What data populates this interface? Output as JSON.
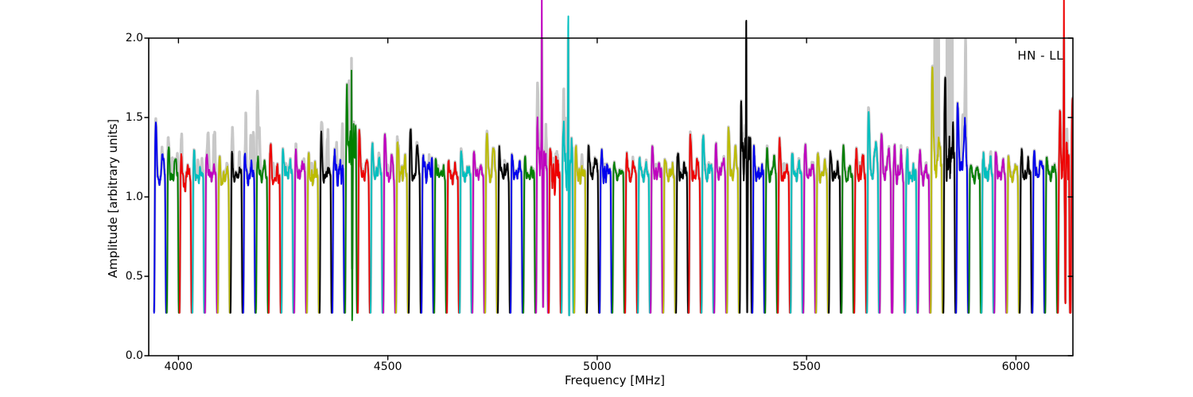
{
  "figure": {
    "xlabel": "Frequency [MHz]",
    "ylabel": "Amplitude [arbitrary units]",
    "annotation": "HN - LL",
    "background": "#ffffff",
    "frame_color": "#000000"
  },
  "chart_data": {
    "type": "line",
    "title": "",
    "xlabel": "Frequency [MHz]",
    "ylabel": "Amplitude [arbitrary units]",
    "annotation": "HN - LL",
    "xlim": [
      3929,
      6136
    ],
    "ylim": [
      0,
      2
    ],
    "xticks": [
      4000,
      4500,
      5000,
      5500,
      6000
    ],
    "yticks": [
      0,
      0.5,
      1,
      1.5,
      2
    ],
    "ytick_labels": [
      "0.0",
      "0.5",
      "1.0",
      "1.5",
      "2.0"
    ],
    "grid": false,
    "legend": "none",
    "palette": {
      "b": "#0000ee",
      "g": "#007f00",
      "r": "#ee0000",
      "c": "#00bfbf",
      "m": "#bf00bf",
      "y": "#bcbc00",
      "k": "#000000"
    },
    "gray_underlay_color": "#c8c8c8",
    "baseline_level": 0.27,
    "segment_grid": {
      "f_first_center_mhz": 3956.2,
      "spacing_mhz": 30.4,
      "width_mhz": 30.4
    },
    "rfi_spike_freqs_mhz": [
      4408,
      4868,
      4929,
      5362,
      5810,
      5841,
      6114
    ],
    "segment_fields": [
      "color",
      "plateau",
      "peak",
      "gray_extra",
      "spike_to",
      "dip_to",
      "noise",
      "gray_columns"
    ],
    "segments": [
      [
        "b",
        1.1,
        1.48,
        0.06,
        0,
        0,
        0.05,
        0
      ],
      [
        "g",
        1.12,
        1.31,
        0.14,
        0,
        0,
        0.05,
        0
      ],
      [
        "r",
        1.08,
        1.27,
        0.08,
        0,
        0,
        0.06,
        0
      ],
      [
        "c",
        1.12,
        1.26,
        0.1,
        0,
        0,
        0.05,
        0
      ],
      [
        "m",
        1.13,
        1.29,
        0.25,
        0,
        0,
        0.05,
        0
      ],
      [
        "y",
        1.1,
        1.21,
        0.06,
        0,
        0,
        0.06,
        0
      ],
      [
        "k",
        1.12,
        1.25,
        0.12,
        0,
        0,
        0.06,
        0
      ],
      [
        "b",
        1.12,
        1.26,
        0.3,
        0,
        0,
        0.06,
        0
      ],
      [
        "g",
        1.13,
        1.26,
        0.26,
        0,
        0,
        0.05,
        0
      ],
      [
        "r",
        1.1,
        1.35,
        0.06,
        0,
        0,
        0.05,
        0
      ],
      [
        "c",
        1.14,
        1.3,
        0.04,
        0,
        0,
        0.05,
        0
      ],
      [
        "m",
        1.14,
        1.27,
        0.04,
        0,
        0,
        0.05,
        0
      ],
      [
        "y",
        1.12,
        1.22,
        0.06,
        0,
        0,
        0.07,
        0
      ],
      [
        "k",
        1.12,
        1.37,
        0.2,
        0,
        0,
        0.05,
        0
      ],
      [
        "b",
        1.14,
        1.28,
        0.16,
        0,
        0,
        0.12,
        0
      ],
      [
        "g",
        1.3,
        1.55,
        0.3,
        2.35,
        0.2,
        0.16,
        0
      ],
      [
        "r",
        1.12,
        1.43,
        0.04,
        0,
        0,
        0.05,
        0
      ],
      [
        "c",
        1.14,
        1.32,
        0.03,
        0,
        0,
        0.05,
        0
      ],
      [
        "m",
        1.12,
        1.42,
        0.05,
        0,
        0,
        0.05,
        0
      ],
      [
        "y",
        1.14,
        1.33,
        0.04,
        0,
        0,
        0.06,
        0
      ],
      [
        "k",
        1.12,
        1.43,
        0.03,
        0,
        0,
        0.04,
        0
      ],
      [
        "b",
        1.15,
        1.24,
        0.04,
        0,
        0,
        0.09,
        0
      ],
      [
        "g",
        1.14,
        1.22,
        0.02,
        0,
        0,
        0.04,
        0
      ],
      [
        "r",
        1.12,
        1.23,
        0.02,
        0,
        0,
        0.05,
        0
      ],
      [
        "c",
        1.13,
        1.28,
        0.02,
        0,
        0,
        0.05,
        0
      ],
      [
        "m",
        1.14,
        1.29,
        0.02,
        0,
        0,
        0.05,
        0
      ],
      [
        "y",
        1.13,
        1.42,
        0.03,
        0,
        0,
        0.05,
        0
      ],
      [
        "k",
        1.14,
        1.29,
        0.02,
        0,
        0,
        0.06,
        0
      ],
      [
        "b",
        1.13,
        1.26,
        0.02,
        0,
        0,
        0.05,
        0
      ],
      [
        "g",
        1.13,
        1.22,
        0.03,
        0,
        0,
        0.04,
        0
      ],
      [
        "m",
        1.2,
        1.42,
        0.25,
        2.35,
        0.3,
        0.18,
        0
      ],
      [
        "r",
        1.1,
        1.3,
        0.12,
        0,
        0,
        0.14,
        0
      ],
      [
        "c",
        1.18,
        1.45,
        0.25,
        2.35,
        0.25,
        0.18,
        0
      ],
      [
        "y",
        1.13,
        1.28,
        0.04,
        0,
        0,
        0.06,
        0
      ],
      [
        "k",
        1.14,
        1.33,
        0.02,
        0,
        0,
        0.05,
        0
      ],
      [
        "b",
        1.14,
        1.27,
        0.02,
        0,
        0,
        0.07,
        0
      ],
      [
        "g",
        1.13,
        1.22,
        0.02,
        0,
        0,
        0.04,
        0
      ],
      [
        "r",
        1.12,
        1.28,
        0.02,
        0,
        0,
        0.05,
        0
      ],
      [
        "c",
        1.13,
        1.26,
        0.02,
        0,
        0,
        0.05,
        0
      ],
      [
        "m",
        1.14,
        1.3,
        0.02,
        0,
        0,
        0.05,
        0
      ],
      [
        "y",
        1.13,
        1.25,
        0.02,
        0,
        0,
        0.05,
        0
      ],
      [
        "k",
        1.13,
        1.28,
        0.02,
        0,
        0,
        0.05,
        0
      ],
      [
        "r",
        1.12,
        1.38,
        0.04,
        0,
        0,
        0.05,
        0
      ],
      [
        "c",
        1.13,
        1.42,
        0.02,
        0,
        0,
        0.08,
        0
      ],
      [
        "m",
        1.14,
        1.3,
        0.02,
        0,
        0,
        0.05,
        0
      ],
      [
        "y",
        1.13,
        1.45,
        0.03,
        0,
        0,
        0.05,
        0
      ],
      [
        "k",
        1.25,
        1.45,
        0.1,
        2.35,
        0.27,
        0.2,
        0
      ],
      [
        "b",
        1.13,
        1.28,
        0.02,
        0,
        0,
        0.06,
        0
      ],
      [
        "g",
        1.13,
        1.3,
        0.02,
        0,
        0,
        0.04,
        0
      ],
      [
        "r",
        1.12,
        1.35,
        0.05,
        0,
        0,
        0.05,
        0
      ],
      [
        "c",
        1.13,
        1.28,
        0.02,
        0,
        0,
        0.05,
        0
      ],
      [
        "m",
        1.14,
        1.32,
        0.02,
        0,
        0,
        0.05,
        0
      ],
      [
        "y",
        1.13,
        1.26,
        0.02,
        0,
        0,
        0.06,
        0
      ],
      [
        "k",
        1.13,
        1.28,
        0.02,
        0,
        0,
        0.05,
        0
      ],
      [
        "g",
        1.12,
        1.33,
        0.02,
        0,
        0,
        0.04,
        0
      ],
      [
        "r",
        1.13,
        1.3,
        0.06,
        0,
        0,
        0.1,
        0
      ],
      [
        "c",
        1.14,
        1.55,
        0.03,
        0,
        0,
        0.06,
        0
      ],
      [
        "m",
        1.14,
        1.42,
        0.02,
        0,
        0,
        0.05,
        0
      ],
      [
        "m",
        1.13,
        1.3,
        0.02,
        0,
        0,
        0.07,
        0
      ],
      [
        "c",
        1.12,
        1.26,
        0.02,
        0,
        0,
        0.06,
        0
      ],
      [
        "m",
        1.13,
        1.28,
        0.02,
        0,
        0,
        0.06,
        0
      ],
      [
        "y",
        1.18,
        1.85,
        0.2,
        0,
        0,
        0.1,
        1
      ],
      [
        "k",
        1.2,
        1.68,
        0.15,
        0,
        0,
        0.22,
        1
      ],
      [
        "b",
        1.18,
        1.58,
        0.35,
        0,
        0,
        0.1,
        0
      ],
      [
        "g",
        1.12,
        1.22,
        0.02,
        0,
        0,
        0.04,
        0
      ],
      [
        "c",
        1.13,
        1.28,
        0.02,
        0,
        0,
        0.06,
        0
      ],
      [
        "m",
        1.13,
        1.28,
        0.02,
        0,
        0,
        0.05,
        0
      ],
      [
        "y",
        1.12,
        1.25,
        0.02,
        0,
        0,
        0.05,
        0
      ],
      [
        "k",
        1.13,
        1.28,
        0.02,
        0,
        0,
        0.05,
        0
      ],
      [
        "b",
        1.14,
        1.28,
        0.02,
        0,
        0,
        0.05,
        0
      ],
      [
        "g",
        1.13,
        1.25,
        0.02,
        0,
        0,
        0.04,
        0
      ],
      [
        "r",
        1.2,
        1.45,
        0.1,
        2.35,
        0.3,
        0.18,
        0
      ],
      [
        "r",
        1.25,
        1.55,
        0.05,
        0,
        0,
        0.12,
        0
      ]
    ]
  }
}
